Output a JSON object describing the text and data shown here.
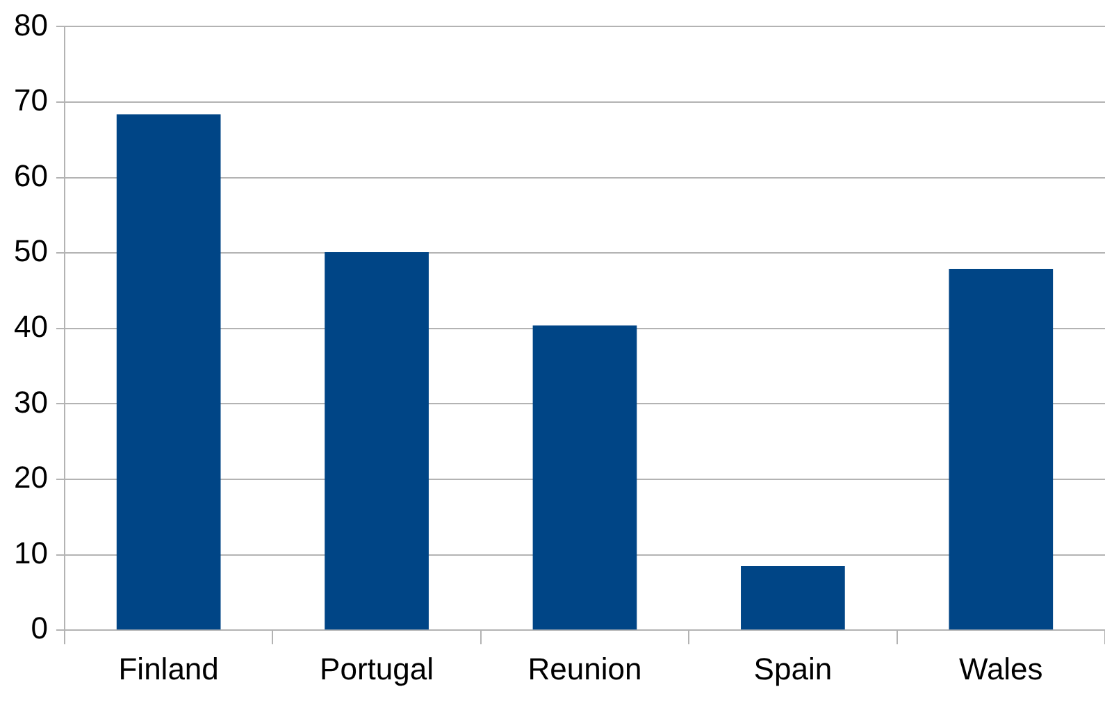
{
  "chart_data": {
    "type": "bar",
    "categories": [
      "Finland",
      "Portugal",
      "Reunion",
      "Spain",
      "Wales"
    ],
    "values": [
      68.4,
      50.1,
      40.4,
      8.5,
      47.9
    ],
    "color": "#004586",
    "ylim": [
      0,
      80
    ],
    "yticks": [
      0,
      10,
      20,
      30,
      40,
      50,
      60,
      70,
      80
    ],
    "grid": "y"
  }
}
